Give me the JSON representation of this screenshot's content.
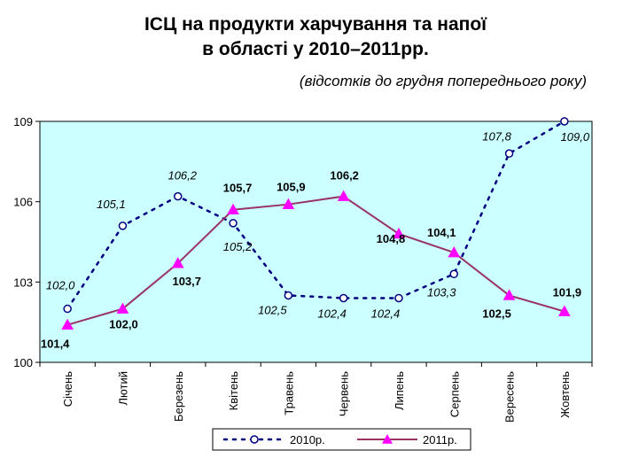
{
  "title_line1": "ІСЦ на продукти харчування та напої",
  "title_line2": "в області у 2010–2011рр.",
  "subtitle": "(відсотків до грудня попереднього року)",
  "colors": {
    "plot_bg": "#ccffff",
    "series_2010": "#000080",
    "series_2011": "#993366",
    "marker_2011": "#ff00ff"
  },
  "chart_data": {
    "type": "line",
    "categories": [
      "Січень",
      "Лютий",
      "Березень",
      "Квітень",
      "Травень",
      "Червень",
      "Липень",
      "Серпень",
      "Вересень",
      "Жовтень"
    ],
    "ylim": [
      100,
      109
    ],
    "yticks": [
      100,
      103,
      106,
      109
    ],
    "grid": false,
    "legend_position": "bottom",
    "series": [
      {
        "name": "2010р.",
        "values": [
          102.0,
          105.1,
          106.2,
          105.2,
          102.5,
          102.4,
          102.4,
          103.3,
          107.8,
          109.0
        ],
        "labels": [
          "102,0",
          "105,1",
          "106,2",
          "105,2",
          "102,5",
          "102,4",
          "102,4",
          "103,3",
          "107,8",
          "109,0"
        ]
      },
      {
        "name": "2011р.",
        "values": [
          101.4,
          102.0,
          103.7,
          105.7,
          105.9,
          106.2,
          104.8,
          104.1,
          102.5,
          101.9
        ],
        "labels": [
          "101,4",
          "102,0",
          "103,7",
          "105,7",
          "105,9",
          "106,2",
          "104,8",
          "104,1",
          "102,5",
          "101,9"
        ]
      }
    ]
  }
}
